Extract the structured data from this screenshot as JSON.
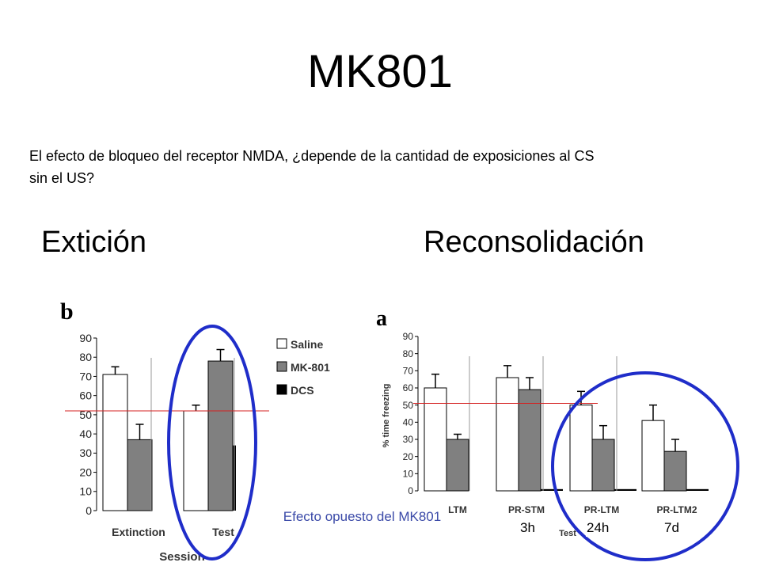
{
  "slide": {
    "title": "MK801",
    "question": "El efecto de bloqueo del receptor NMDA, ¿depende de la cantidad de exposiciones al CS sin el US?",
    "heading_left": "Extición",
    "heading_right": "Reconsolidación",
    "note": "Efecto opuesto del MK801",
    "time_labels": [
      "3h",
      "24h",
      "7d"
    ]
  },
  "chart_data": [
    {
      "type": "bar",
      "panel_label": "b",
      "xlabel": "Session",
      "categories": [
        "Extinction",
        "Test"
      ],
      "ylim": [
        0,
        90
      ],
      "yticks": [
        0,
        10,
        20,
        30,
        40,
        50,
        60,
        70,
        80,
        90
      ],
      "legend": [
        "Saline",
        "MK-801",
        "DCS"
      ],
      "series": [
        {
          "name": "Saline",
          "values": [
            71,
            52
          ],
          "errors": [
            4,
            3
          ],
          "color": "#ffffff"
        },
        {
          "name": "MK-801",
          "values": [
            37,
            78
          ],
          "errors": [
            8,
            6
          ],
          "color": "#808080"
        },
        {
          "name": "DCS",
          "values": [
            null,
            34
          ],
          "errors": [
            null,
            null
          ],
          "color": "#000000"
        }
      ],
      "reference_line": 52
    },
    {
      "type": "bar",
      "panel_label": "a",
      "xlabel": "Test",
      "ylabel": "% time freezing",
      "categories": [
        "LTM",
        "PR-STM",
        "PR-LTM",
        "PR-LTM2"
      ],
      "ylim": [
        0,
        90
      ],
      "yticks": [
        0,
        10,
        20,
        30,
        40,
        50,
        60,
        70,
        80,
        90
      ],
      "series": [
        {
          "name": "Saline",
          "values": [
            60,
            66,
            50,
            41
          ],
          "errors": [
            8,
            7,
            8,
            9
          ],
          "color": "#ffffff"
        },
        {
          "name": "MK-801",
          "values": [
            30,
            59,
            30,
            23
          ],
          "errors": [
            3,
            7,
            8,
            7
          ],
          "color": "#808080"
        },
        {
          "name": "DCS",
          "values": [
            null,
            1,
            1,
            1
          ],
          "errors": [
            null,
            null,
            null,
            null
          ],
          "color": "#000000"
        }
      ],
      "reference_line": 51
    }
  ],
  "colors": {
    "highlight_ellipse": "#1f2dc9",
    "reference_line": "#d42020",
    "note_text": "#3b4aa8"
  }
}
